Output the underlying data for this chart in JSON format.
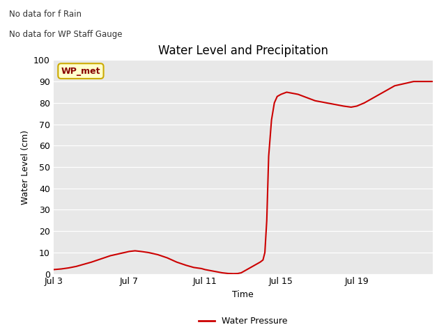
{
  "title": "Water Level and Precipitation",
  "xlabel": "Time",
  "ylabel": "Water Level (cm)",
  "ylim": [
    0,
    100
  ],
  "yticks": [
    0,
    10,
    20,
    30,
    40,
    50,
    60,
    70,
    80,
    90,
    100
  ],
  "xtick_positions": [
    0,
    4,
    8,
    12,
    16
  ],
  "xtick_labels": [
    "Jul 3",
    "Jul 7",
    "Jul 11",
    "Jul 15",
    "Jul 19"
  ],
  "xlim": [
    0,
    20
  ],
  "bg_color": "#e8e8e8",
  "line_color": "#cc0000",
  "line_width": 1.5,
  "no_data_text1": "No data for f Rain",
  "no_data_text2": "No data for WP Staff Gauge",
  "legend_label": "WP_met",
  "legend_label2": "Water Pressure",
  "wp_met_bg": "#ffffcc",
  "wp_met_border": "#ccaa00",
  "wp_met_text_color": "#880000",
  "x_data": [
    0,
    0.4,
    0.8,
    1.2,
    1.6,
    2.0,
    2.5,
    3.0,
    3.5,
    4.0,
    4.3,
    4.6,
    5.0,
    5.5,
    6.0,
    6.5,
    7.0,
    7.4,
    7.8,
    8.0,
    8.3,
    8.6,
    8.9,
    9.2,
    9.5,
    9.7,
    9.9,
    10.1,
    10.3,
    10.5,
    10.7,
    10.9,
    11.05,
    11.15,
    11.25,
    11.35,
    11.5,
    11.65,
    11.8,
    12.0,
    12.3,
    12.6,
    12.9,
    13.2,
    13.5,
    13.8,
    14.1,
    14.4,
    14.7,
    15.0,
    15.3,
    15.7,
    16.0,
    16.4,
    16.8,
    17.2,
    17.6,
    18.0,
    18.5,
    19.0,
    19.3,
    19.6,
    20.0
  ],
  "y_data": [
    2,
    2.3,
    2.8,
    3.5,
    4.5,
    5.5,
    7.0,
    8.5,
    9.5,
    10.5,
    10.8,
    10.5,
    10.0,
    9.0,
    7.5,
    5.5,
    4.0,
    3.0,
    2.5,
    2.0,
    1.5,
    1.0,
    0.5,
    0.2,
    0.1,
    0.15,
    0.5,
    1.5,
    2.5,
    3.5,
    4.5,
    5.5,
    6.5,
    10,
    25,
    55,
    72,
    80,
    83,
    84,
    85,
    84.5,
    84,
    83,
    82,
    81,
    80.5,
    80,
    79.5,
    79,
    78.5,
    78,
    78.5,
    80,
    82,
    84,
    86,
    88,
    89,
    90,
    90,
    90,
    90
  ]
}
